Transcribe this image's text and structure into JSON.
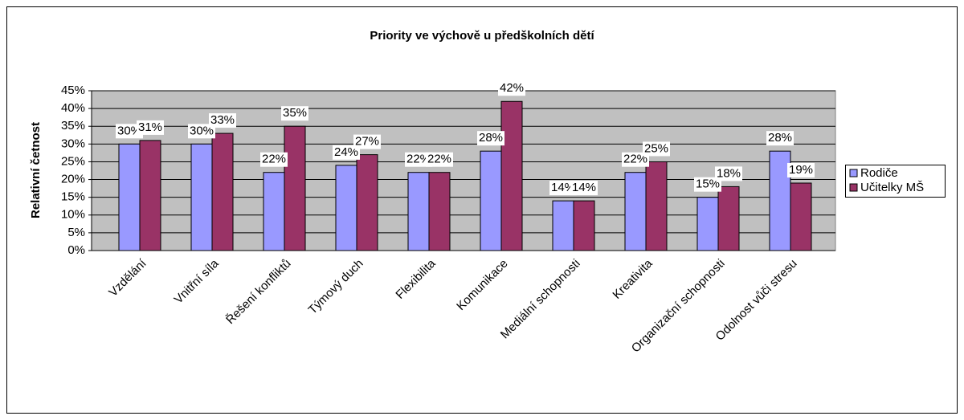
{
  "chart_data": {
    "type": "bar",
    "title": "Priority ve výchově u předškolních dětí",
    "y_label": "Relativní četnost",
    "categories": [
      "Vzdělání",
      "Vnitřní síla",
      "Řešení konfliktů",
      "Týmový duch",
      "Flexibilita",
      "Komunikace",
      "Mediální schopnosti",
      "Kreativita",
      "Organizační schopnosti",
      "Odolnost vůči stresu"
    ],
    "series": [
      {
        "name": "Rodiče",
        "color": "#9999ff",
        "values": [
          30,
          30,
          22,
          24,
          22,
          28,
          14,
          22,
          15,
          28
        ],
        "value_labels": [
          "30%",
          "30%",
          "22%",
          "24%",
          "22%",
          "28%",
          "14%",
          "22%",
          "15%",
          "28%"
        ]
      },
      {
        "name": "Učitelky MŠ",
        "color": "#993366",
        "values": [
          31,
          33,
          35,
          27,
          22,
          42,
          14,
          25,
          18,
          19
        ],
        "value_labels": [
          "31%",
          "33%",
          "35%",
          "27%",
          "22%",
          "42%",
          "14%",
          "25%",
          "18%",
          "19%"
        ]
      }
    ],
    "ylim": [
      0,
      45
    ],
    "yticks": [
      {
        "value": 0,
        "label": "0%"
      },
      {
        "value": 5,
        "label": "5%"
      },
      {
        "value": 10,
        "label": "10%"
      },
      {
        "value": 15,
        "label": "15%"
      },
      {
        "value": 20,
        "label": "20%"
      },
      {
        "value": 25,
        "label": "25%"
      },
      {
        "value": 30,
        "label": "30%"
      },
      {
        "value": 35,
        "label": "35%"
      },
      {
        "value": 40,
        "label": "40%"
      },
      {
        "value": 45,
        "label": "45%"
      }
    ],
    "grid": true,
    "legend": "right",
    "plot_background": "#c0c0c0"
  }
}
